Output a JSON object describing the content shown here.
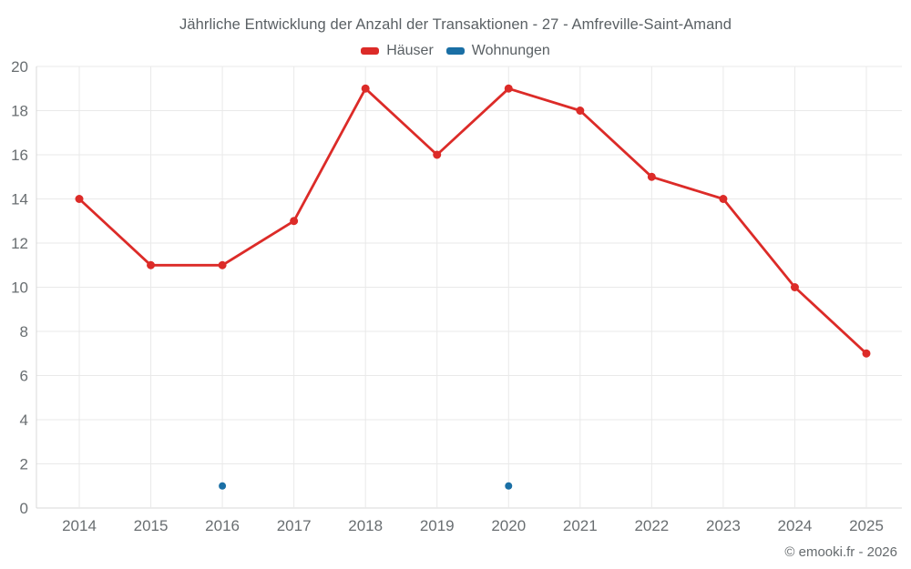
{
  "footer": {
    "credit": "© emooki.fr - 2026"
  },
  "chart_data": {
    "type": "line",
    "title": "Jährliche Entwicklung der Anzahl der Transaktionen - 27 - Amfreville-Saint-Amand",
    "categories": [
      "2014",
      "2015",
      "2016",
      "2017",
      "2018",
      "2019",
      "2020",
      "2021",
      "2022",
      "2023",
      "2024",
      "2025"
    ],
    "series": [
      {
        "name": "Häuser",
        "color": "#dc2b28",
        "values": [
          14,
          11,
          11,
          13,
          19,
          16,
          19,
          18,
          15,
          14,
          10,
          7
        ]
      },
      {
        "name": "Wohnungen",
        "color": "#1a6fa5",
        "values": [
          null,
          null,
          1,
          null,
          null,
          null,
          1,
          null,
          null,
          null,
          null,
          null
        ]
      }
    ],
    "ylim": [
      0,
      20
    ],
    "ytick_step": 2,
    "xlabel": "",
    "ylabel": "",
    "grid": true,
    "legend_position": "top"
  },
  "style": {
    "grid_color": "#e9e9e9",
    "axis_color": "#d9d9d9",
    "tick_color": "#696e71",
    "title_color": "#5a6064"
  }
}
